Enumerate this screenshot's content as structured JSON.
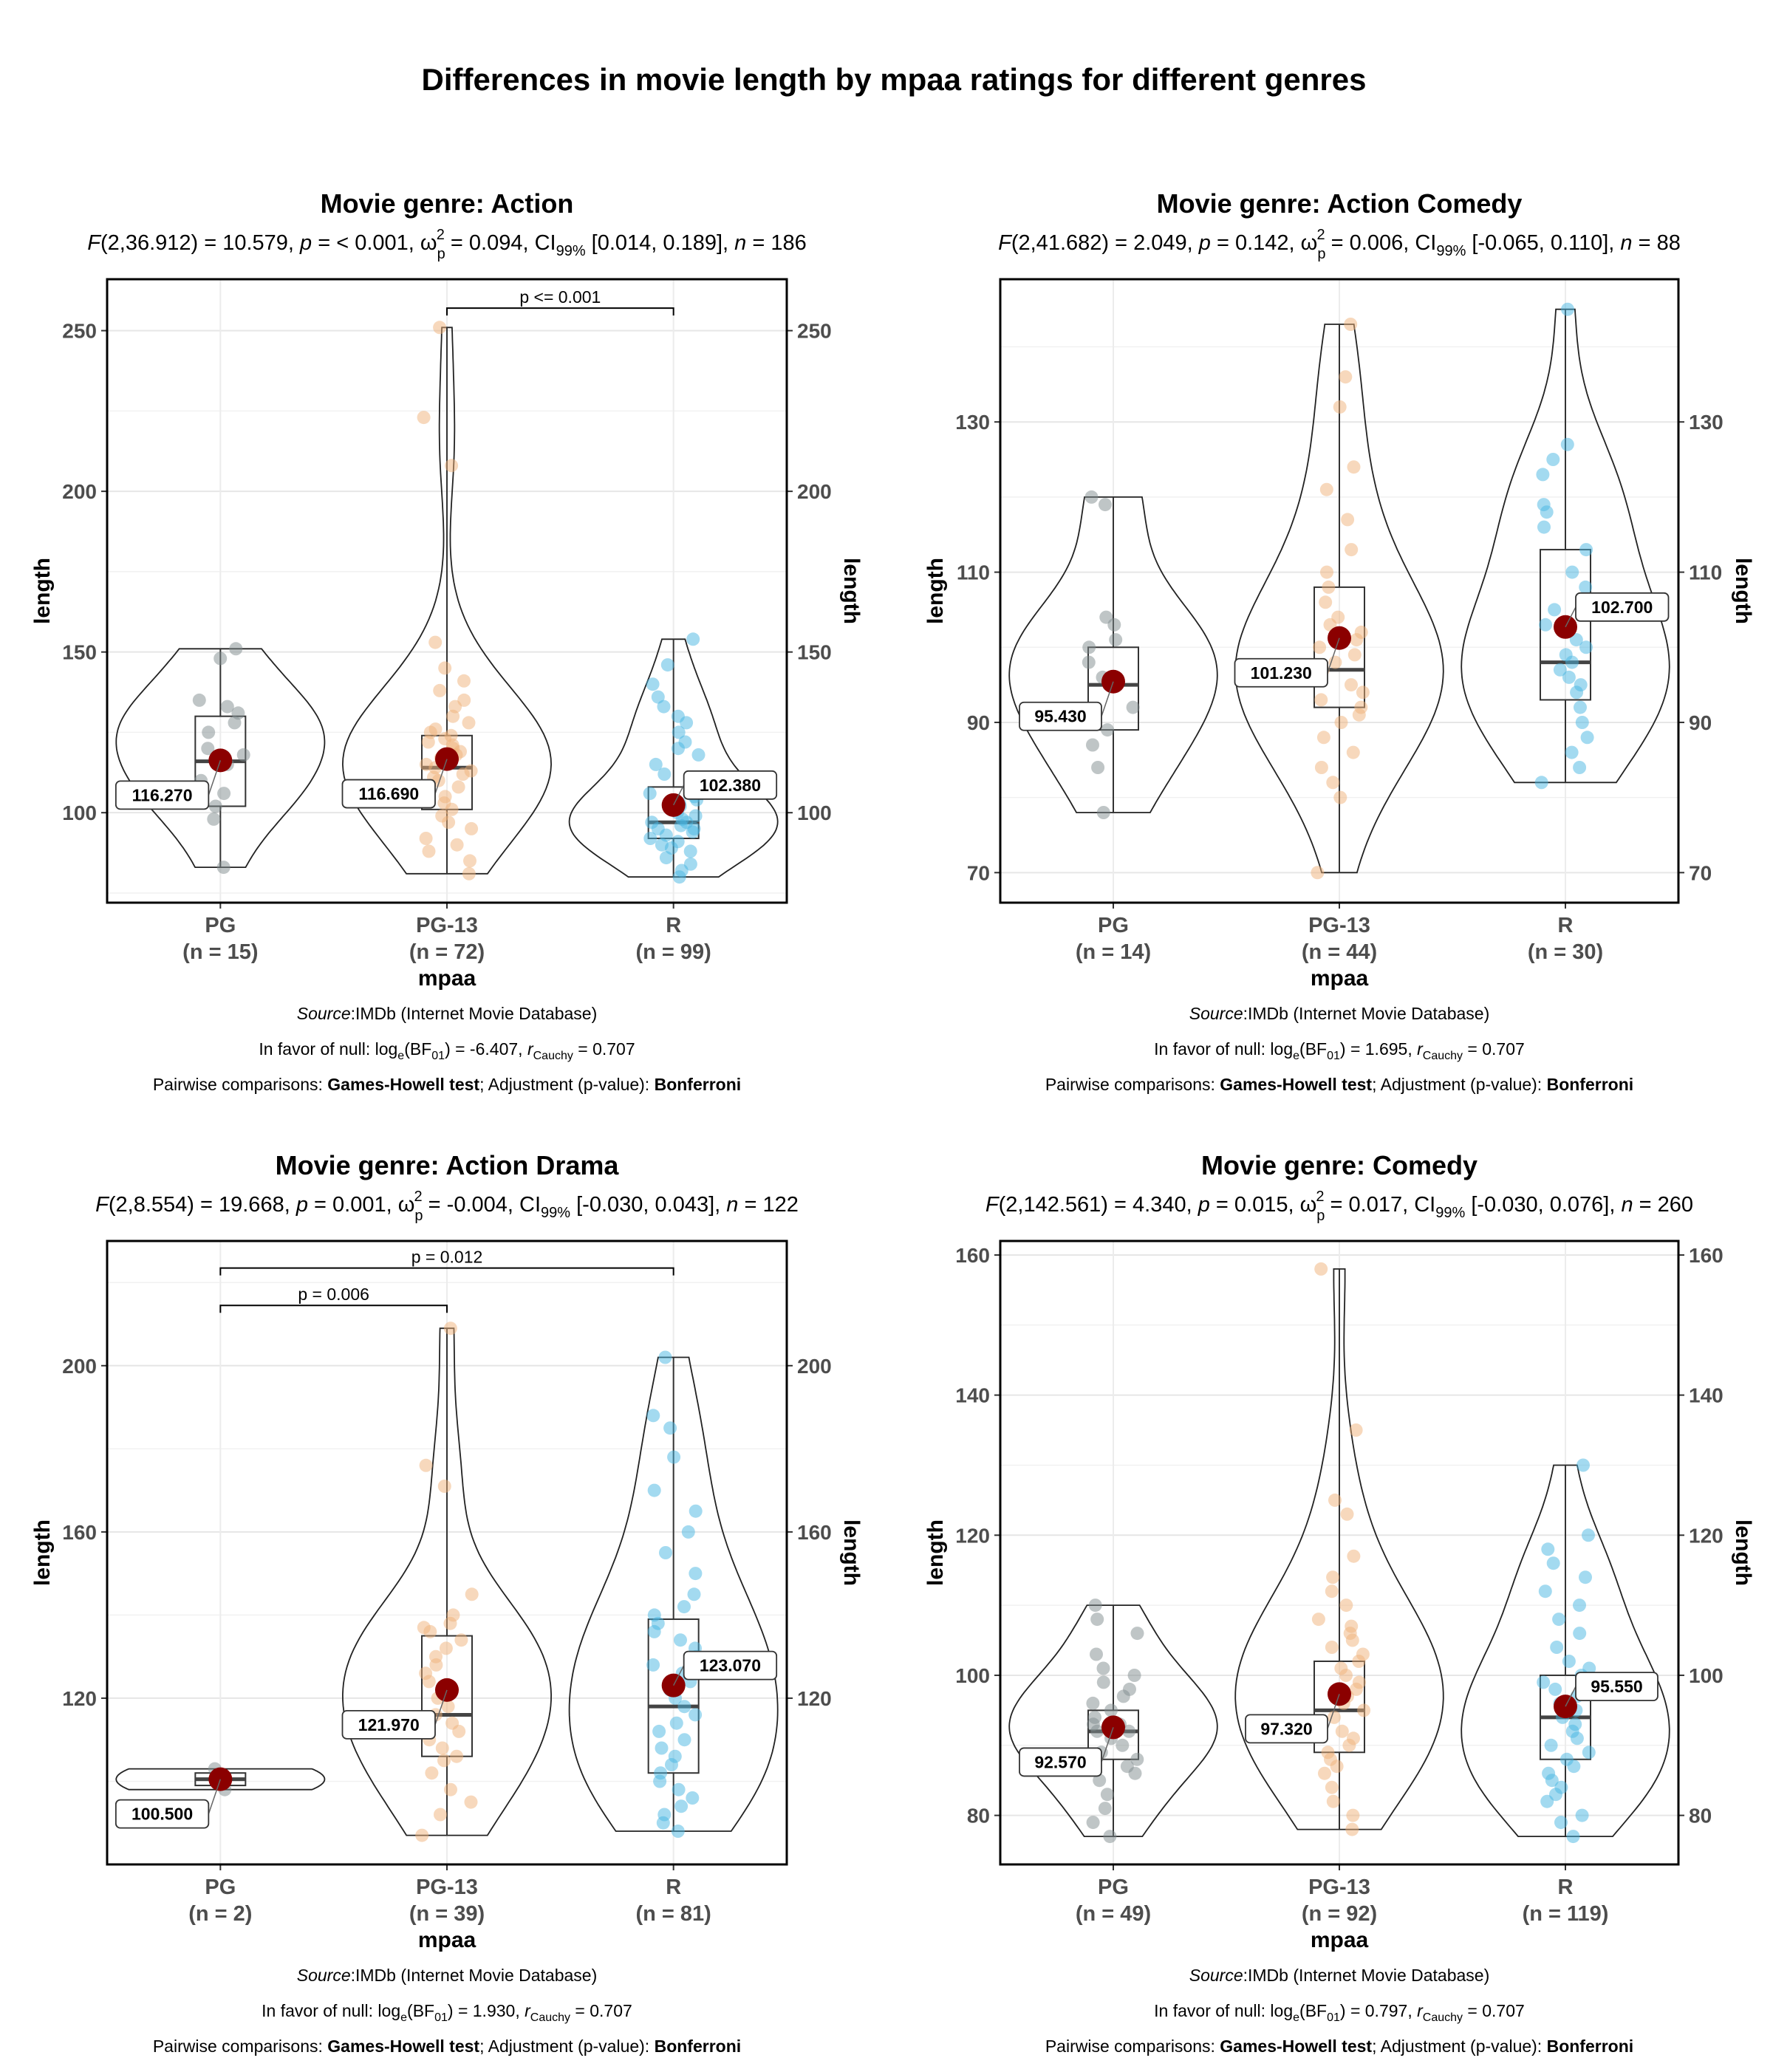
{
  "figure": {
    "title": "Differences in movie length by mpaa ratings for different genres"
  },
  "colors": {
    "PG": "#7f8c8d",
    "PG-13": "#f0b27a",
    "R": "#48b6e2",
    "mean": "#8b0000"
  },
  "chart_data": [
    {
      "type": "violin-box",
      "title": "Movie genre: Action",
      "stats": {
        "F_df": "2,36.912",
        "F": "10.579",
        "p": "< 0.001",
        "omega": "0.094",
        "ci": "[0.014, 0.189]",
        "n": "186"
      },
      "xlabel": "mpaa",
      "ylabel": "length",
      "ylabel_right": "length",
      "ylim": [
        72,
        266
      ],
      "yticks": [
        100,
        150,
        200,
        250
      ],
      "categories": [
        "PG",
        "PG-13",
        "R"
      ],
      "counts": [
        "(n = 15)",
        "(n = 72)",
        "(n = 99)"
      ],
      "groups": [
        {
          "name": "PG",
          "min": 83,
          "q1": 102,
          "median": 116,
          "q3": 130,
          "max": 151,
          "mean": 116.27,
          "mean_label": "116.270",
          "points": [
            83,
            98,
            102,
            106,
            110,
            115,
            118,
            120,
            125,
            128,
            131,
            133,
            135,
            148,
            151
          ]
        },
        {
          "name": "PG-13",
          "min": 81,
          "q1": 101,
          "median": 114,
          "q3": 124,
          "max": 251,
          "mean": 116.69,
          "mean_label": "116.690",
          "points": [
            81,
            85,
            88,
            90,
            92,
            95,
            97,
            99,
            101,
            103,
            105,
            107,
            108,
            110,
            111,
            112,
            113,
            114,
            115,
            116,
            117,
            118,
            119,
            120,
            121,
            122,
            123,
            124,
            125,
            126,
            128,
            130,
            133,
            135,
            138,
            141,
            145,
            153,
            208,
            223,
            251
          ]
        },
        {
          "name": "R",
          "min": 80,
          "q1": 92,
          "median": 97,
          "q3": 108,
          "max": 154,
          "mean": 102.38,
          "mean_label": "102.380",
          "points": [
            80,
            82,
            84,
            86,
            88,
            89,
            90,
            91,
            92,
            93,
            94,
            95,
            95,
            96,
            97,
            97,
            98,
            99,
            100,
            101,
            102,
            103,
            104,
            105,
            106,
            108,
            110,
            112,
            115,
            118,
            120,
            122,
            125,
            128,
            130,
            133,
            136,
            140,
            146,
            154
          ]
        }
      ],
      "comparisons": [
        {
          "from": "PG-13",
          "to": "R",
          "label": "p <= 0.001",
          "y": 257
        }
      ],
      "footer": {
        "source_label": "Source",
        "source_text": ":IMDb (Internet Movie Database)",
        "bf": "-6.407",
        "r": "0.707",
        "pairwise_prefix": "Pairwise comparisons: ",
        "test": "Games-Howell test",
        "adjust_prefix": "; Adjustment (p-value): ",
        "adjust": "Bonferroni"
      }
    },
    {
      "type": "violin-box",
      "title": "Movie genre: Action Comedy",
      "stats": {
        "F_df": "2,41.682",
        "F": "2.049",
        "p": "0.142",
        "omega": "0.006",
        "ci": "[-0.065, 0.110]",
        "n": "88"
      },
      "xlabel": "mpaa",
      "ylabel": "length",
      "ylabel_right": "length",
      "ylim": [
        66,
        149
      ],
      "yticks": [
        70,
        90,
        110,
        130
      ],
      "categories": [
        "PG",
        "PG-13",
        "R"
      ],
      "counts": [
        "(n = 14)",
        "(n = 44)",
        "(n = 30)"
      ],
      "groups": [
        {
          "name": "PG",
          "min": 78,
          "q1": 89,
          "median": 95,
          "q3": 100,
          "max": 120,
          "mean": 95.43,
          "mean_label": "95.430",
          "points": [
            78,
            84,
            87,
            89,
            92,
            95,
            96,
            98,
            100,
            101,
            103,
            104,
            119,
            120
          ]
        },
        {
          "name": "PG-13",
          "min": 70,
          "q1": 92,
          "median": 97,
          "q3": 108,
          "max": 143,
          "mean": 101.23,
          "mean_label": "101.230",
          "points": [
            70,
            80,
            82,
            84,
            86,
            88,
            90,
            91,
            92,
            93,
            94,
            95,
            96,
            97,
            98,
            99,
            100,
            101,
            102,
            103,
            104,
            106,
            108,
            110,
            113,
            117,
            121,
            124,
            132,
            136,
            143
          ]
        },
        {
          "name": "R",
          "min": 82,
          "q1": 93,
          "median": 98,
          "q3": 113,
          "max": 145,
          "mean": 102.7,
          "mean_label": "102.700",
          "points": [
            82,
            84,
            86,
            88,
            90,
            92,
            94,
            95,
            96,
            97,
            98,
            99,
            100,
            101,
            103,
            105,
            108,
            110,
            113,
            116,
            118,
            119,
            123,
            125,
            127,
            145
          ]
        }
      ],
      "comparisons": [],
      "footer": {
        "source_label": "Source",
        "source_text": ":IMDb (Internet Movie Database)",
        "bf": "1.695",
        "r": "0.707",
        "pairwise_prefix": "Pairwise comparisons: ",
        "test": "Games-Howell test",
        "adjust_prefix": "; Adjustment (p-value): ",
        "adjust": "Bonferroni"
      }
    },
    {
      "type": "violin-box",
      "title": "Movie genre: Action Drama",
      "stats": {
        "F_df": "2,8.554",
        "F": "19.668",
        "p": "0.001",
        "omega": "-0.004",
        "ci": "[-0.030, 0.043]",
        "n": "122"
      },
      "xlabel": "mpaa",
      "ylabel": "length",
      "ylabel_right": "length",
      "ylim": [
        80,
        230
      ],
      "yticks": [
        120,
        160,
        200
      ],
      "categories": [
        "PG",
        "PG-13",
        "R"
      ],
      "counts": [
        "(n = 2)",
        "(n = 39)",
        "(n = 81)"
      ],
      "groups": [
        {
          "name": "PG",
          "min": 98,
          "q1": 99,
          "median": 100.5,
          "q3": 102,
          "max": 103,
          "mean": 100.5,
          "mean_label": "100.500",
          "points": [
            98,
            103
          ]
        },
        {
          "name": "PG-13",
          "min": 87,
          "q1": 106,
          "median": 116,
          "q3": 135,
          "max": 209,
          "mean": 121.97,
          "mean_label": "121.970",
          "points": [
            87,
            92,
            95,
            98,
            102,
            105,
            106,
            108,
            110,
            112,
            114,
            116,
            118,
            120,
            122,
            124,
            126,
            128,
            130,
            132,
            134,
            136,
            137,
            138,
            140,
            145,
            171,
            176,
            209
          ]
        },
        {
          "name": "R",
          "min": 88,
          "q1": 102,
          "median": 118,
          "q3": 139,
          "max": 202,
          "mean": 123.07,
          "mean_label": "123.070",
          "points": [
            88,
            90,
            92,
            94,
            96,
            98,
            100,
            102,
            104,
            106,
            108,
            110,
            112,
            114,
            116,
            118,
            120,
            122,
            124,
            126,
            128,
            130,
            132,
            134,
            136,
            138,
            140,
            142,
            145,
            150,
            155,
            160,
            165,
            170,
            178,
            185,
            188,
            202
          ]
        }
      ],
      "comparisons": [
        {
          "from": "PG",
          "to": "PG-13",
          "label": "p = 0.006",
          "y": 214.5
        },
        {
          "from": "PG",
          "to": "R",
          "label": "p = 0.012",
          "y": 223.5
        }
      ],
      "footer": {
        "source_label": "Source",
        "source_text": ":IMDb (Internet Movie Database)",
        "bf": "1.930",
        "r": "0.707",
        "pairwise_prefix": "Pairwise comparisons: ",
        "test": "Games-Howell test",
        "adjust_prefix": "; Adjustment (p-value): ",
        "adjust": "Bonferroni"
      }
    },
    {
      "type": "violin-box",
      "title": "Movie genre: Comedy",
      "stats": {
        "F_df": "2,142.561",
        "F": "4.340",
        "p": "0.015",
        "omega": "0.017",
        "ci": "[-0.030, 0.076]",
        "n": "260"
      },
      "xlabel": "mpaa",
      "ylabel": "length",
      "ylabel_right": "length",
      "ylim": [
        73,
        162
      ],
      "yticks": [
        80,
        100,
        120,
        140,
        160
      ],
      "categories": [
        "PG",
        "PG-13",
        "R"
      ],
      "counts": [
        "(n = 49)",
        "(n = 92)",
        "(n = 119)"
      ],
      "groups": [
        {
          "name": "PG",
          "min": 77,
          "q1": 88,
          "median": 92,
          "q3": 95,
          "max": 110,
          "mean": 92.57,
          "mean_label": "92.570",
          "points": [
            77,
            79,
            81,
            83,
            85,
            86,
            87,
            88,
            89,
            90,
            91,
            92,
            92,
            93,
            93,
            94,
            95,
            96,
            97,
            98,
            99,
            100,
            101,
            103,
            106,
            108,
            110
          ]
        },
        {
          "name": "PG-13",
          "min": 78,
          "q1": 89,
          "median": 95,
          "q3": 102,
          "max": 158,
          "mean": 97.32,
          "mean_label": "97.320",
          "points": [
            78,
            80,
            82,
            84,
            86,
            87,
            88,
            89,
            90,
            91,
            92,
            93,
            94,
            95,
            96,
            97,
            98,
            99,
            100,
            101,
            102,
            103,
            104,
            105,
            106,
            107,
            108,
            110,
            112,
            114,
            117,
            123,
            125,
            135,
            158
          ]
        },
        {
          "name": "R",
          "min": 77,
          "q1": 88,
          "median": 94,
          "q3": 100,
          "max": 130,
          "mean": 95.55,
          "mean_label": "95.550",
          "points": [
            77,
            79,
            80,
            82,
            83,
            84,
            85,
            86,
            87,
            88,
            89,
            90,
            91,
            92,
            93,
            94,
            95,
            96,
            97,
            98,
            99,
            100,
            101,
            102,
            104,
            106,
            108,
            110,
            112,
            114,
            116,
            118,
            120,
            130
          ]
        }
      ],
      "comparisons": [],
      "footer": {
        "source_label": "Source",
        "source_text": ":IMDb (Internet Movie Database)",
        "bf": "0.797",
        "r": "0.707",
        "pairwise_prefix": "Pairwise comparisons: ",
        "test": "Games-Howell test",
        "adjust_prefix": "; Adjustment (p-value): ",
        "adjust": "Bonferroni"
      }
    }
  ]
}
